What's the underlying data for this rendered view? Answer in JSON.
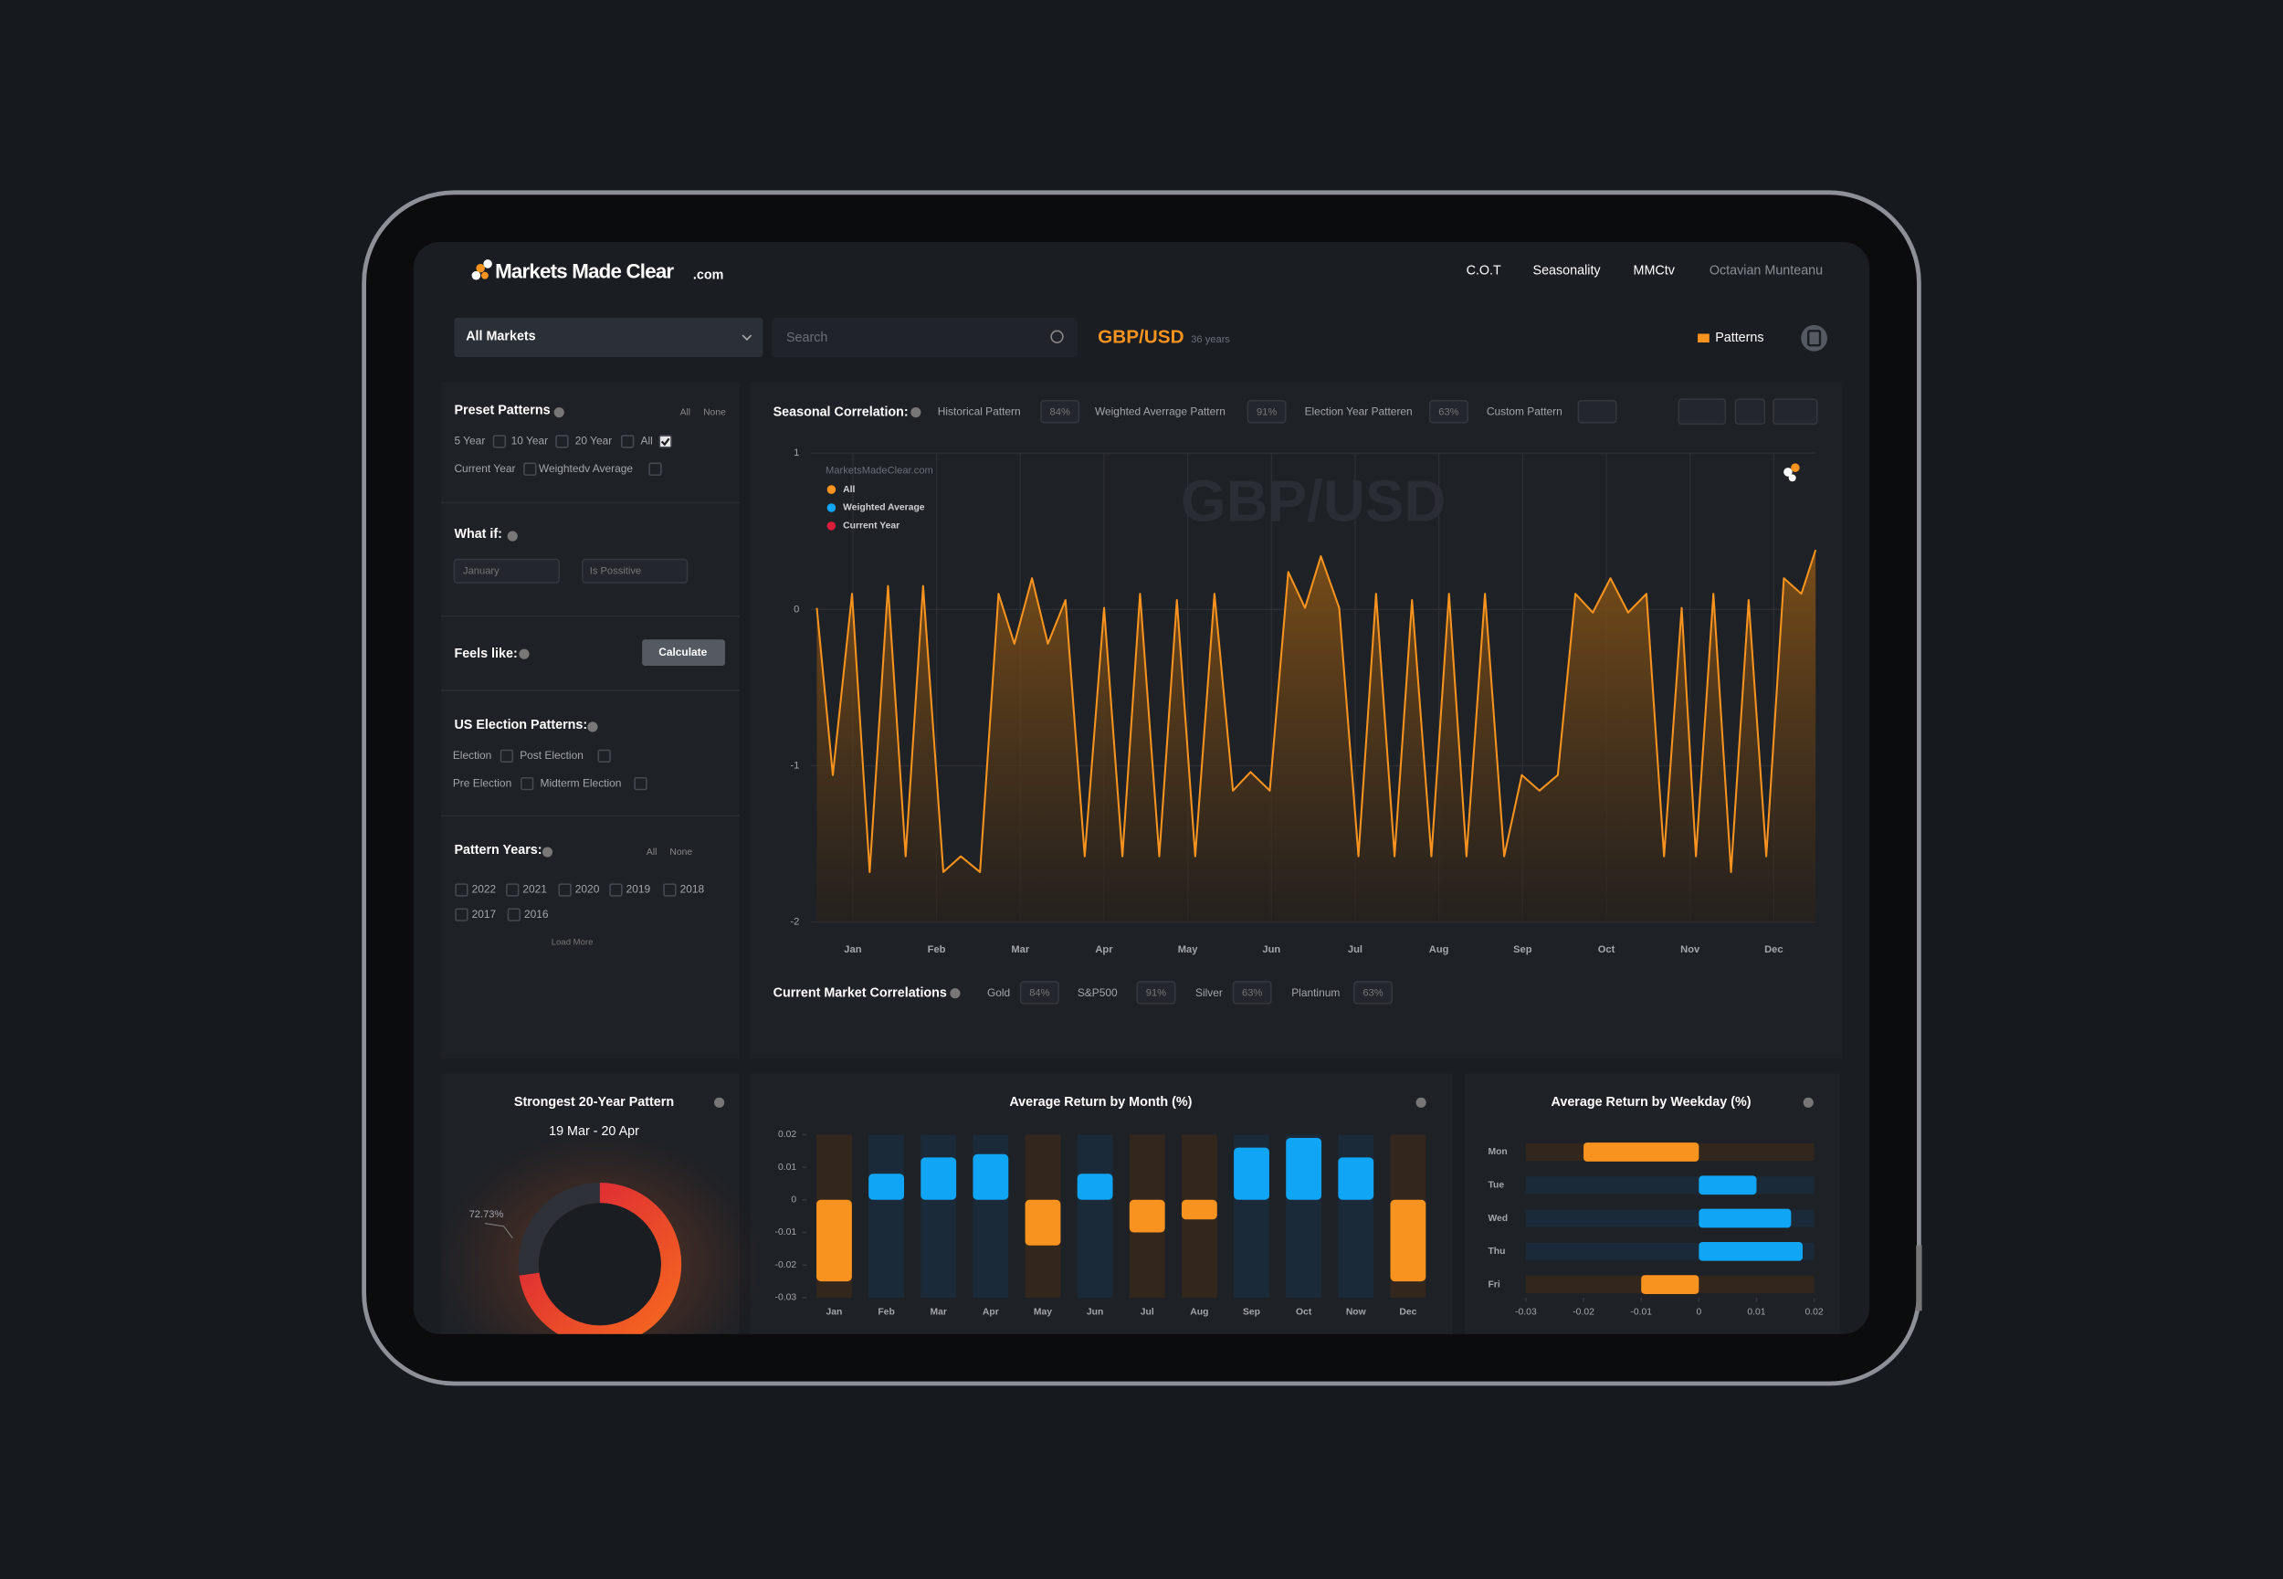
{
  "header": {
    "logo": "Markets Made Clear",
    "logo_suffix": ".com",
    "nav": [
      "C.O.T",
      "Seasonality",
      "MMCtv"
    ],
    "user": "Octavian Munteanu"
  },
  "toolbar": {
    "market_select": "All Markets",
    "search_placeholder": "Search",
    "symbol": "GBP/USD",
    "years": "36 years",
    "patterns": "Patterns"
  },
  "sidebar": {
    "preset": {
      "title": "Preset Patterns",
      "all": "All",
      "none": "None",
      "options": [
        {
          "label": "5 Year",
          "checked": false
        },
        {
          "label": "10 Year",
          "checked": false
        },
        {
          "label": "20 Year",
          "checked": false
        },
        {
          "label": "All",
          "checked": true
        },
        {
          "label": "Current Year",
          "checked": false
        },
        {
          "label": "Weightedv Average",
          "checked": false
        }
      ]
    },
    "what_if": {
      "title": "What if:",
      "month": "January",
      "condition": "Is Possitive"
    },
    "feels_like": {
      "title": "Feels like:",
      "button": "Calculate"
    },
    "election": {
      "title": "US Election Patterns:",
      "options": [
        {
          "label": "Election",
          "checked": false
        },
        {
          "label": "Post Election",
          "checked": false
        },
        {
          "label": "Pre Election",
          "checked": false
        },
        {
          "label": "Midterm Election",
          "checked": false
        }
      ]
    },
    "years": {
      "title": "Pattern Years:",
      "all": "All",
      "none": "None",
      "options": [
        {
          "label": "2022",
          "checked": false
        },
        {
          "label": "2021",
          "checked": false
        },
        {
          "label": "2020",
          "checked": false
        },
        {
          "label": "2019",
          "checked": false
        },
        {
          "label": "2018",
          "checked": false
        },
        {
          "label": "2017",
          "checked": false
        },
        {
          "label": "2016",
          "checked": false
        }
      ],
      "load_more": "Load More"
    }
  },
  "seasonal": {
    "type": "line",
    "title": "Seasonal Correlation:",
    "watermark": "GBP/USD",
    "source": "MarketsMadeClear.com",
    "patterns": [
      {
        "label": "Historical Pattern",
        "value": "84%"
      },
      {
        "label": "Weighted Averrage Pattern",
        "value": "91%"
      },
      {
        "label": "Election Year Patteren",
        "value": "63%"
      },
      {
        "label": "Custom Pattern"
      }
    ],
    "xlim": [
      0,
      12
    ],
    "xticks": [
      {
        "value": 0.5,
        "label": "Jan"
      },
      {
        "value": 1.5,
        "label": "Feb"
      },
      {
        "value": 2.5,
        "label": "Mar"
      },
      {
        "value": 3.5,
        "label": "Apr"
      },
      {
        "value": 4.5,
        "label": "May"
      },
      {
        "value": 5.5,
        "label": "Jun"
      },
      {
        "value": 6.5,
        "label": "Jul"
      },
      {
        "value": 7.5,
        "label": "Aug"
      },
      {
        "value": 8.5,
        "label": "Sep"
      },
      {
        "value": 9.5,
        "label": "Oct"
      },
      {
        "value": 10.5,
        "label": "Nov"
      },
      {
        "value": 11.5,
        "label": "Dec"
      }
    ],
    "ylim": [
      -2,
      1
    ],
    "yticks": [
      -2,
      -1,
      0,
      1
    ],
    "grid": true,
    "series": [
      {
        "name": "All",
        "color": "#f7931e",
        "x": [
          0.07,
          0.26,
          0.49,
          0.7,
          0.92,
          1.13,
          1.34,
          1.58,
          1.79,
          2.02,
          2.24,
          2.43,
          2.64,
          2.83,
          3.04,
          3.27,
          3.5,
          3.72,
          3.93,
          4.16,
          4.37,
          4.59,
          4.82,
          5.04,
          5.25,
          5.48,
          5.7,
          5.9,
          6.09,
          6.31,
          6.54,
          6.75,
          6.97,
          7.18,
          7.41,
          7.62,
          7.83,
          8.05,
          8.28,
          8.49,
          8.7,
          8.92,
          9.13,
          9.34,
          9.55,
          9.76,
          9.98,
          10.19,
          10.4,
          10.57,
          10.78,
          10.99,
          11.2,
          11.41,
          11.62,
          11.83,
          12.0
        ],
        "values": [
          0.01,
          -1.06,
          0.1,
          -1.68,
          0.15,
          -1.58,
          0.15,
          -1.68,
          -1.58,
          -1.68,
          0.1,
          -0.22,
          0.2,
          -0.22,
          0.06,
          -1.58,
          0.01,
          -1.58,
          0.1,
          -1.58,
          0.06,
          -1.58,
          0.1,
          -1.16,
          -1.04,
          -1.16,
          0.24,
          0.01,
          0.34,
          0.01,
          -1.58,
          0.1,
          -1.58,
          0.06,
          -1.58,
          0.1,
          -1.58,
          0.1,
          -1.58,
          -1.06,
          -1.16,
          -1.06,
          0.1,
          -0.02,
          0.2,
          -0.02,
          0.1,
          -1.58,
          0.01,
          -1.58,
          0.1,
          -1.68,
          0.06,
          -1.58,
          0.2,
          0.1,
          0.38
        ]
      },
      {
        "name": "Weighted Average",
        "color": "#10a5f5"
      },
      {
        "name": "Current Year",
        "color": "#d81e3a"
      }
    ]
  },
  "correlations": {
    "title": "Current Market Correlations",
    "items": [
      {
        "label": "Gold",
        "value": "84%"
      },
      {
        "label": "S&P500",
        "value": "91%"
      },
      {
        "label": "Silver",
        "value": "63%"
      },
      {
        "label": "Plantinum",
        "value": "63%"
      }
    ]
  },
  "strongest": {
    "type": "donut",
    "title": "Strongest 20-Year Pattern",
    "subtitle": "19 Mar - 20 Apr",
    "values": [
      72.73
    ],
    "value_labels": [
      "72.73%"
    ],
    "color": "#d81e3a"
  },
  "monthly": {
    "type": "bar",
    "title": "Average Return by Month (%)",
    "categories": [
      "Jan",
      "Feb",
      "Mar",
      "Apr",
      "May",
      "Jun",
      "Jul",
      "Aug",
      "Sep",
      "Oct",
      "Now",
      "Dec"
    ],
    "values": [
      -0.025,
      0.008,
      0.013,
      0.014,
      -0.014,
      0.008,
      -0.01,
      -0.006,
      0.016,
      0.019,
      0.013,
      -0.025
    ],
    "ylim": [
      -0.03,
      0.02
    ],
    "yticks": [
      -0.03,
      -0.02,
      -0.01,
      0,
      0.01,
      0.02
    ],
    "positive_color": "#10a5f5",
    "negative_color": "#f7931e"
  },
  "weekday": {
    "type": "hbar",
    "title": "Average Return by Weekday (%)",
    "categories": [
      "Mon",
      "Tue",
      "Wed",
      "Thu",
      "Fri"
    ],
    "values": [
      -0.02,
      0.01,
      0.016,
      0.018,
      -0.01
    ],
    "xlim": [
      -0.03,
      0.02
    ],
    "xticks": [
      -0.03,
      -0.02,
      -0.01,
      0,
      0.01,
      0.02
    ],
    "positive_color": "#10a5f5",
    "negative_color": "#f7931e"
  }
}
